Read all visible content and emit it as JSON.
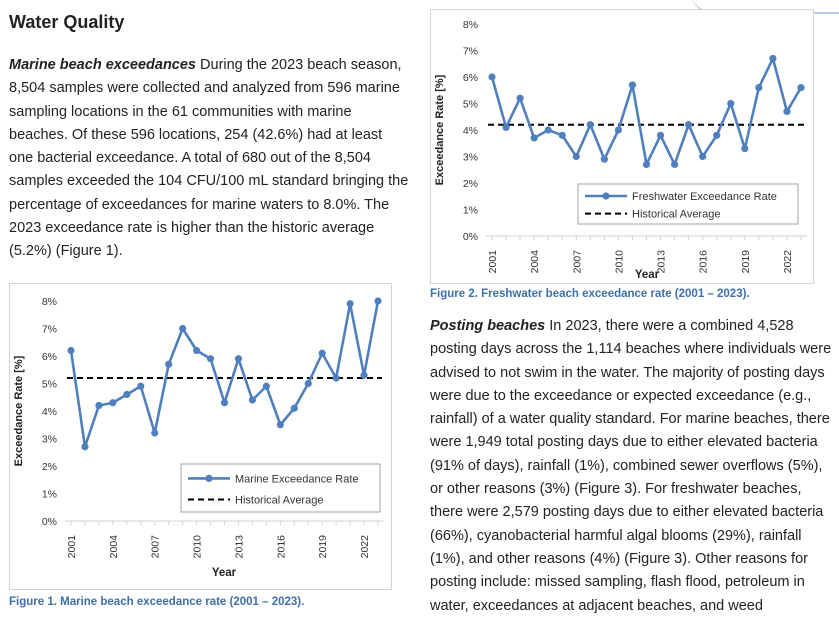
{
  "section_title": "Water Quality",
  "marine_para": {
    "lead": "Marine beach exceedances",
    "body": " During the 2023 beach season, 8,504 samples were collected and analyzed from 596 marine sampling locations in the 61 communities with marine beaches. Of these 596 locations, 254 (42.6%) had at least one bacterial exceedance. A total of 680 out of the 8,504 samples exceeded the 104 CFU/100 mL standard bringing the percentage of exceedances for marine waters to 8.0%. The 2023 exceedance rate is higher than the historic average (5.2%) (Figure 1)."
  },
  "posting_para": {
    "lead": "Posting beaches",
    "body": " In 2023, there were a combined 4,528 posting days across the 1,114 beaches where individuals were advised to not swim in the water. The majority of posting days were due to the exceedance or expected exceedance (e.g., rainfall) of a water quality standard. For marine beaches, there were 1,949 total posting days due to either elevated bacteria (91% of days), rainfall (1%), combined sewer overflows (5%), or other reasons (3%) (Figure 3). For freshwater beaches, there were 2,579 posting days due to either elevated bacteria (66%), cyanobacterial harmful algal blooms (29%), rainfall (1%), and other reasons (4%) (Figure 3). Other reasons for posting include: missed sampling, flash flood, petroleum in water, exceedances at adjacent beaches, and weed"
  },
  "figure1_caption": "Figure 1. Marine beach exceedance rate (2001 – 2023).",
  "figure2_caption": "Figure 2. Freshwater beach exceedance rate (2001 – 2023).",
  "chart_data": [
    {
      "type": "line",
      "xlabel": "Year",
      "ylabel": "Exceedance Rate [%]",
      "ylim": [
        0,
        8
      ],
      "yticks": [
        "0%",
        "1%",
        "2%",
        "3%",
        "4%",
        "5%",
        "6%",
        "7%",
        "8%"
      ],
      "x": [
        2001,
        2002,
        2003,
        2004,
        2005,
        2006,
        2007,
        2008,
        2009,
        2010,
        2011,
        2012,
        2013,
        2014,
        2015,
        2016,
        2017,
        2018,
        2019,
        2020,
        2021,
        2022,
        2023
      ],
      "xtick_labels": [
        "2001",
        "2004",
        "2007",
        "2010",
        "2013",
        "2016",
        "2019",
        "2022"
      ],
      "series": [
        {
          "name": "Marine Exceedance Rate",
          "color": "#4f7fbd",
          "values": [
            6.2,
            2.7,
            4.2,
            4.3,
            4.6,
            4.9,
            3.2,
            5.7,
            7.0,
            6.2,
            5.9,
            4.3,
            5.9,
            4.4,
            4.9,
            3.5,
            4.1,
            5.0,
            6.1,
            5.2,
            7.9,
            5.3,
            8.0
          ]
        },
        {
          "name": "Historical Average",
          "style": "dashed",
          "color": "#000000",
          "value": 5.2
        }
      ],
      "grid": false,
      "legend": "bottom-right"
    },
    {
      "type": "line",
      "xlabel": "Year",
      "ylabel": "Exceedance Rate [%]",
      "ylim": [
        0,
        8
      ],
      "yticks": [
        "0%",
        "1%",
        "2%",
        "3%",
        "4%",
        "5%",
        "6%",
        "7%",
        "8%"
      ],
      "x": [
        2001,
        2002,
        2003,
        2004,
        2005,
        2006,
        2007,
        2008,
        2009,
        2010,
        2011,
        2012,
        2013,
        2014,
        2015,
        2016,
        2017,
        2018,
        2019,
        2020,
        2021,
        2022,
        2023
      ],
      "xtick_labels": [
        "2001",
        "2004",
        "2007",
        "2010",
        "2013",
        "2016",
        "2019",
        "2022"
      ],
      "series": [
        {
          "name": "Freshwater Exceedance Rate",
          "color": "#4f7fbd",
          "values": [
            6.0,
            4.1,
            5.2,
            3.7,
            4.0,
            3.8,
            3.0,
            4.2,
            2.9,
            4.0,
            5.7,
            2.7,
            3.8,
            2.7,
            4.2,
            3.0,
            3.8,
            5.0,
            3.3,
            5.6,
            6.7,
            4.7,
            5.6
          ]
        },
        {
          "name": "Historical Average",
          "style": "dashed",
          "color": "#000000",
          "value": 4.2
        }
      ],
      "grid": false,
      "legend": "bottom-right"
    }
  ]
}
